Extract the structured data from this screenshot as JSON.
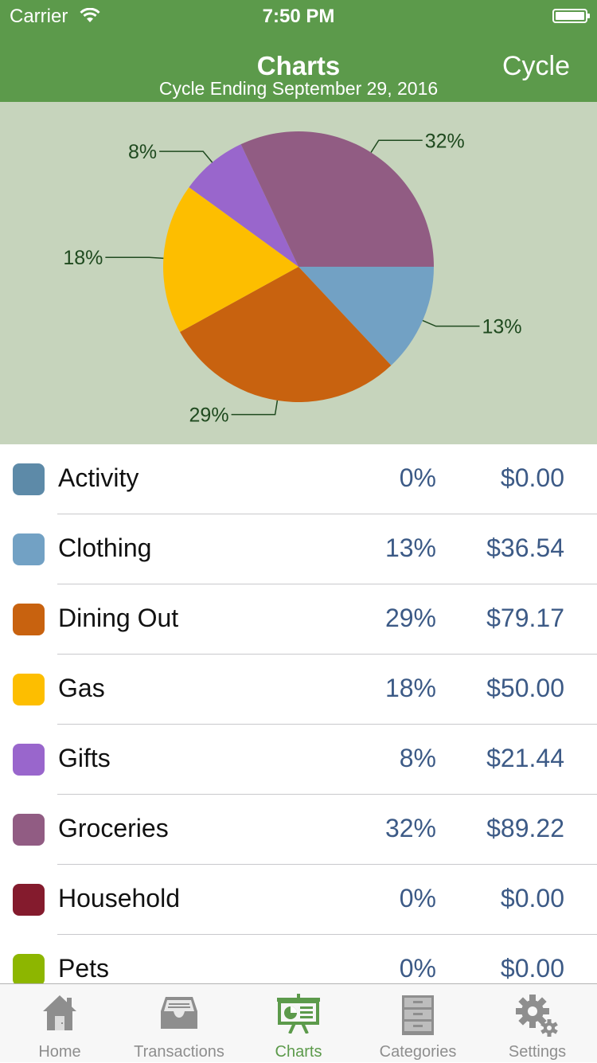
{
  "status": {
    "carrier": "Carrier",
    "time": "7:50 PM"
  },
  "nav": {
    "title": "Charts",
    "subtitle": "Cycle Ending September 29, 2016",
    "cycle_button": "Cycle"
  },
  "chart_data": {
    "type": "pie",
    "slices": [
      {
        "name": "Clothing",
        "value": 13,
        "color": "#72a1c4",
        "label": "13%"
      },
      {
        "name": "Dining Out",
        "value": 29,
        "color": "#c8620f",
        "label": "29%"
      },
      {
        "name": "Gas",
        "value": 18,
        "color": "#fdbe00",
        "label": "18%"
      },
      {
        "name": "Gifts",
        "value": 8,
        "color": "#9966cc",
        "label": "8%"
      },
      {
        "name": "Groceries",
        "value": 32,
        "color": "#915c83",
        "label": "32%"
      }
    ]
  },
  "categories": [
    {
      "name": "Activity",
      "percent": "0%",
      "amount": "$0.00",
      "color": "#5d8aa8"
    },
    {
      "name": "Clothing",
      "percent": "13%",
      "amount": "$36.54",
      "color": "#72a1c4"
    },
    {
      "name": "Dining Out",
      "percent": "29%",
      "amount": "$79.17",
      "color": "#c8620f"
    },
    {
      "name": "Gas",
      "percent": "18%",
      "amount": "$50.00",
      "color": "#fdbe00"
    },
    {
      "name": "Gifts",
      "percent": "8%",
      "amount": "$21.44",
      "color": "#9966cc"
    },
    {
      "name": "Groceries",
      "percent": "32%",
      "amount": "$89.22",
      "color": "#915c83"
    },
    {
      "name": "Household",
      "percent": "0%",
      "amount": "$0.00",
      "color": "#841b2d"
    },
    {
      "name": "Pets",
      "percent": "0%",
      "amount": "$0.00",
      "color": "#8db600"
    }
  ],
  "tabs": [
    {
      "label": "Home",
      "icon": "house-icon"
    },
    {
      "label": "Transactions",
      "icon": "inbox-tray-icon"
    },
    {
      "label": "Charts",
      "icon": "presentation-chart-icon",
      "active": true
    },
    {
      "label": "Categories",
      "icon": "file-cabinet-icon"
    },
    {
      "label": "Settings",
      "icon": "gears-icon"
    }
  ]
}
